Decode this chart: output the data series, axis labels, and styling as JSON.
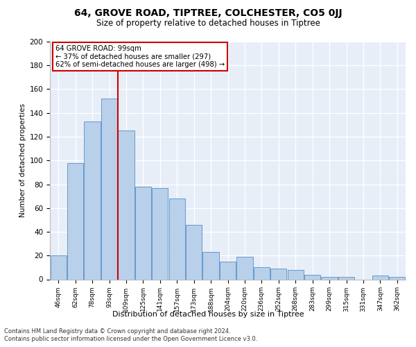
{
  "title1": "64, GROVE ROAD, TIPTREE, COLCHESTER, CO5 0JJ",
  "title2": "Size of property relative to detached houses in Tiptree",
  "xlabel": "Distribution of detached houses by size in Tiptree",
  "ylabel": "Number of detached properties",
  "categories": [
    "46sqm",
    "62sqm",
    "78sqm",
    "93sqm",
    "109sqm",
    "125sqm",
    "141sqm",
    "157sqm",
    "173sqm",
    "188sqm",
    "204sqm",
    "220sqm",
    "236sqm",
    "252sqm",
    "268sqm",
    "283sqm",
    "299sqm",
    "315sqm",
    "331sqm",
    "347sqm",
    "362sqm"
  ],
  "values": [
    20,
    98,
    133,
    152,
    125,
    78,
    77,
    68,
    46,
    23,
    15,
    19,
    10,
    9,
    8,
    4,
    2,
    2,
    0,
    3,
    2
  ],
  "bar_color": "#B8D0EA",
  "bar_edge_color": "#6699CC",
  "bg_color": "#E8EEF8",
  "grid_color": "#FFFFFF",
  "annotation_line1": "64 GROVE ROAD: 99sqm",
  "annotation_line2": "← 37% of detached houses are smaller (297)",
  "annotation_line3": "62% of semi-detached houses are larger (498) →",
  "vline_color": "#CC0000",
  "box_edge_color": "#CC0000",
  "footer1": "Contains HM Land Registry data © Crown copyright and database right 2024.",
  "footer2": "Contains public sector information licensed under the Open Government Licence v3.0.",
  "ylim": [
    0,
    200
  ],
  "yticks": [
    0,
    20,
    40,
    60,
    80,
    100,
    120,
    140,
    160,
    180,
    200
  ],
  "vline_pos": 3.5
}
